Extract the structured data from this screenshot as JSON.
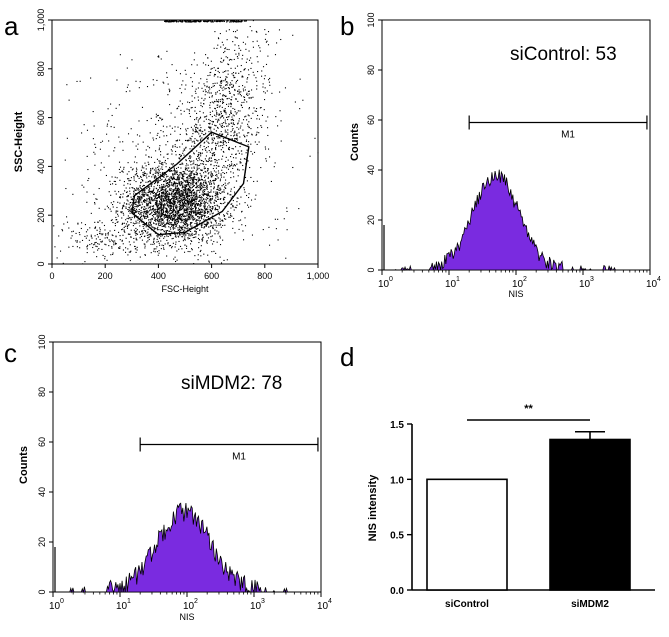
{
  "chart_data": [
    {
      "panel": "a",
      "type": "scatter",
      "xlabel": "FSC-Height",
      "ylabel": "SSC-Height",
      "xlim": [
        0,
        1000
      ],
      "ylim": [
        0,
        1000
      ],
      "xticks": [
        "0",
        "200",
        "400",
        "600",
        "800",
        "1,000"
      ],
      "yticks": [
        "0",
        "200",
        "400",
        "600",
        "800",
        "1,000"
      ],
      "clusters": [
        {
          "name": "main",
          "cx": 460,
          "cy": 250,
          "sx": 95,
          "sy": 80,
          "n": 2600
        },
        {
          "name": "upper-tail",
          "cx": 610,
          "cy": 560,
          "sx": 80,
          "sy": 190,
          "n": 950
        },
        {
          "name": "diffuse",
          "cx": 480,
          "cy": 400,
          "sx": 210,
          "sy": 240,
          "n": 600
        },
        {
          "name": "lower-left-streak",
          "cx": 180,
          "cy": 110,
          "sx": 80,
          "sy": 45,
          "n": 160
        }
      ],
      "gate": [
        [
          300,
          210
        ],
        [
          400,
          120
        ],
        [
          500,
          130
        ],
        [
          640,
          215
        ],
        [
          720,
          330
        ],
        [
          740,
          480
        ],
        [
          600,
          540
        ],
        [
          470,
          410
        ],
        [
          310,
          280
        ]
      ]
    },
    {
      "panel": "b",
      "type": "area",
      "title": "siControl: 53",
      "xlabel": "NIS",
      "ylabel": "Counts",
      "xscale": "log",
      "xlim": [
        1,
        10000
      ],
      "ylim": [
        0,
        100
      ],
      "yticks": [
        "0",
        "20",
        "40",
        "60",
        "80",
        "100"
      ],
      "xticks": [
        {
          "base": "10",
          "exp": "0"
        },
        {
          "base": "10",
          "exp": "1"
        },
        {
          "base": "10",
          "exp": "2"
        },
        {
          "base": "10",
          "exp": "3"
        },
        {
          "base": "10",
          "exp": "4"
        }
      ],
      "peak_center": 50,
      "peak_height": 38,
      "peak_width_decades": 0.34,
      "noise": 3,
      "gate_label": "M1",
      "gate_range": [
        20,
        9000
      ],
      "gate_y": 59,
      "fill_color": "#7a2be0"
    },
    {
      "panel": "c",
      "type": "area",
      "title": "siMDM2: 78",
      "xlabel": "NIS",
      "ylabel": "Counts",
      "xscale": "log",
      "xlim": [
        1,
        10000
      ],
      "ylim": [
        0,
        100
      ],
      "yticks": [
        "0",
        "20",
        "40",
        "60",
        "80",
        "100"
      ],
      "xticks": [
        {
          "base": "10",
          "exp": "0"
        },
        {
          "base": "10",
          "exp": "1"
        },
        {
          "base": "10",
          "exp": "2"
        },
        {
          "base": "10",
          "exp": "3"
        },
        {
          "base": "10",
          "exp": "4"
        }
      ],
      "peak_center": 90,
      "peak_height": 32,
      "peak_width_decades": 0.4,
      "noise": 4,
      "gate_label": "M1",
      "gate_range": [
        20,
        9000
      ],
      "gate_y": 59,
      "fill_color": "#7a2be0"
    },
    {
      "panel": "d",
      "type": "bar",
      "ylabel": "NIS intensity",
      "categories": [
        "siControl",
        "siMDM2"
      ],
      "values": [
        1.0,
        1.36
      ],
      "errors": [
        0,
        0.07
      ],
      "colors": [
        "#ffffff",
        "#000000"
      ],
      "ylim": [
        0,
        1.5
      ],
      "yticks": [
        "0.0",
        "0.5",
        "1.0",
        "1.5"
      ],
      "significance": "**"
    }
  ]
}
